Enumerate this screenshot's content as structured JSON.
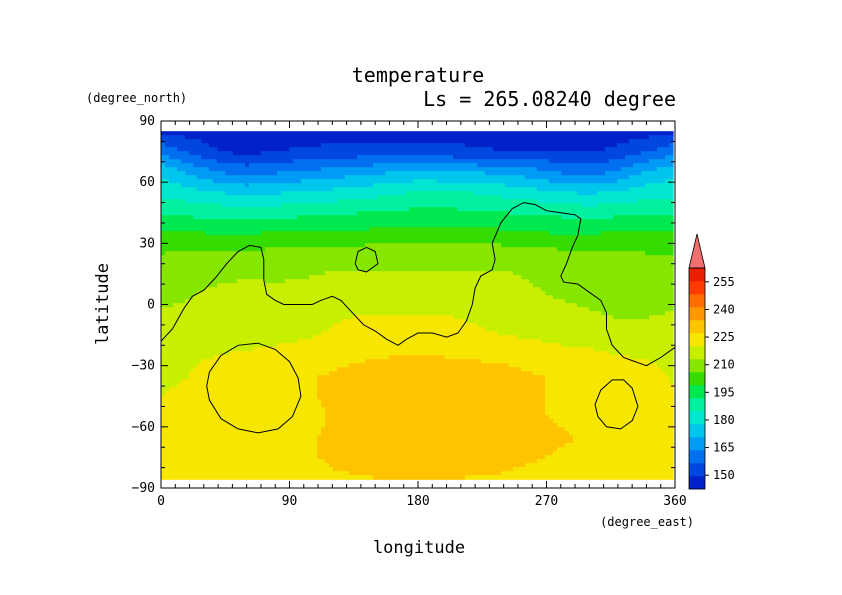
{
  "chart_data": {
    "type": "heatmap",
    "title": "temperature",
    "subtitle": "Ls = 265.08240 degree",
    "xlabel": "longitude",
    "ylabel": "latitude",
    "x_unit": "(degree_east)",
    "y_unit": "(degree_north)",
    "xlim": [
      0,
      360
    ],
    "ylim": [
      -90,
      90
    ],
    "x_ticks": [
      0,
      90,
      180,
      270,
      360
    ],
    "y_ticks": [
      90,
      60,
      30,
      0,
      -30,
      -60,
      -90
    ],
    "x_tick_labels": [
      "0",
      "90",
      "180",
      "270",
      "360"
    ],
    "y_tick_labels": [
      "90",
      "60",
      "30",
      "0",
      "−30",
      "−60",
      "−90"
    ],
    "grid": false,
    "colorbar": {
      "position": "right",
      "extend": "max",
      "levels": [
        142.5,
        150,
        157.5,
        165,
        172.5,
        180,
        187.5,
        195,
        202.5,
        210,
        217.5,
        225,
        232.5,
        240,
        247.5,
        255,
        262.5
      ],
      "colors": [
        "#0022c8",
        "#0047e0",
        "#0070f0",
        "#009bf4",
        "#00c6ee",
        "#00e6d0",
        "#00f0a0",
        "#00e850",
        "#34dc00",
        "#86e600",
        "#c8ee00",
        "#f6e600",
        "#ffc400",
        "#ff9800",
        "#ff6c00",
        "#ff3c00",
        "#e82000"
      ],
      "extend_color": "#f07070",
      "tick_labels": [
        "150",
        "165",
        "180",
        "195",
        "210",
        "225",
        "240",
        "255"
      ],
      "tick_values": [
        150,
        165,
        180,
        195,
        210,
        225,
        240,
        255
      ]
    },
    "grid_lat": [
      85,
      75,
      65,
      55,
      45,
      35,
      25,
      15,
      5,
      -5,
      -15,
      -25,
      -35,
      -45,
      -55,
      -65,
      -75,
      -85
    ],
    "grid_lon": [
      0,
      20,
      40,
      60,
      80,
      100,
      120,
      140,
      160,
      180,
      200,
      220,
      240,
      260,
      280,
      300,
      320,
      340,
      360
    ],
    "values": [
      [
        148,
        147,
        146,
        146,
        146,
        146,
        147,
        147,
        147,
        147,
        147,
        147,
        147,
        147,
        147,
        146,
        146,
        147,
        148
      ],
      [
        163,
        156,
        150,
        148,
        150,
        151,
        152,
        153,
        153,
        153,
        152,
        151,
        150,
        150,
        150,
        149,
        152,
        157,
        163
      ],
      [
        178,
        171,
        165,
        162,
        164,
        166,
        168,
        170,
        172,
        174,
        173,
        172,
        171,
        168,
        164,
        162,
        166,
        173,
        178
      ],
      [
        185,
        183,
        180,
        178,
        179,
        181,
        182,
        184,
        186,
        188,
        188,
        187,
        185,
        183,
        180,
        179,
        181,
        184,
        185
      ],
      [
        194,
        193,
        192,
        191,
        192,
        193,
        194,
        195,
        196,
        197,
        197,
        196,
        195,
        194,
        193,
        192,
        193,
        194,
        194
      ],
      [
        203,
        203,
        202,
        202,
        203,
        203,
        204,
        204,
        205,
        205,
        205,
        205,
        204,
        203,
        202,
        202,
        203,
        203,
        203
      ],
      [
        210,
        211,
        212,
        212,
        212,
        212,
        213,
        214,
        214,
        215,
        215,
        215,
        214,
        213,
        212,
        211,
        211,
        210,
        210
      ],
      [
        214,
        215,
        216,
        217,
        217,
        217,
        218,
        218,
        218,
        218,
        218,
        218,
        218,
        217,
        216,
        215,
        214,
        214,
        214
      ],
      [
        216,
        217,
        219,
        219,
        218,
        219,
        220,
        221,
        221,
        221,
        221,
        220,
        219,
        218,
        217,
        216,
        216,
        216,
        216
      ],
      [
        218,
        219,
        220,
        220,
        220,
        221,
        224,
        225,
        225,
        225,
        225,
        224,
        222,
        220,
        219,
        218,
        217,
        217,
        218
      ],
      [
        220,
        221,
        221,
        222,
        223,
        224,
        226,
        227,
        227,
        227,
        227,
        226,
        225,
        224,
        222,
        221,
        220,
        220,
        220
      ],
      [
        223,
        224,
        225,
        226,
        227,
        228,
        230,
        231,
        232,
        232,
        232,
        231,
        230,
        229,
        228,
        227,
        225,
        224,
        223
      ],
      [
        224,
        225,
        228,
        230,
        231,
        232,
        233,
        236,
        238,
        238,
        238,
        237,
        236,
        233,
        232,
        231,
        230,
        228,
        224
      ],
      [
        225,
        226,
        229,
        232,
        231,
        232,
        233,
        237,
        238,
        239,
        239,
        238,
        236,
        233,
        232,
        231,
        231,
        229,
        225
      ],
      [
        225,
        226,
        228,
        230,
        230,
        231,
        233,
        237,
        239,
        239,
        239,
        238,
        237,
        233,
        232,
        231,
        230,
        228,
        225
      ],
      [
        229,
        230,
        230,
        231,
        231,
        232,
        233,
        237,
        239,
        239,
        239,
        238,
        237,
        234,
        233,
        232,
        231,
        230,
        229
      ],
      [
        230,
        230,
        231,
        231,
        232,
        232,
        233,
        235,
        238,
        239,
        238,
        237,
        234,
        233,
        232,
        232,
        231,
        231,
        230
      ],
      [
        231,
        231,
        231,
        231,
        231,
        231,
        232,
        232,
        233,
        233,
        233,
        232,
        232,
        231,
        231,
        231,
        231,
        231,
        231
      ]
    ],
    "contour_level_line": "black",
    "contours": [
      [
        [
          0,
          -18
        ],
        [
          8,
          -12
        ],
        [
          16,
          -2
        ],
        [
          22,
          4
        ],
        [
          30,
          7
        ],
        [
          38,
          13
        ],
        [
          46,
          20
        ],
        [
          54,
          26
        ],
        [
          62,
          29
        ],
        [
          70,
          28
        ],
        [
          72,
          22
        ],
        [
          72,
          12
        ],
        [
          74,
          5
        ],
        [
          80,
          2
        ],
        [
          86,
          0
        ],
        [
          96,
          0
        ],
        [
          106,
          0
        ],
        [
          112,
          2
        ],
        [
          120,
          4
        ],
        [
          126,
          2
        ],
        [
          134,
          -4
        ],
        [
          142,
          -10
        ],
        [
          150,
          -13
        ],
        [
          158,
          -17
        ],
        [
          166,
          -20
        ],
        [
          172,
          -17
        ],
        [
          180,
          -14
        ],
        [
          190,
          -14
        ],
        [
          200,
          -16
        ],
        [
          208,
          -14
        ],
        [
          214,
          -8
        ],
        [
          218,
          0
        ],
        [
          220,
          8
        ],
        [
          224,
          14
        ],
        [
          232,
          17
        ],
        [
          234,
          22
        ],
        [
          232,
          30
        ],
        [
          238,
          40
        ],
        [
          246,
          47
        ],
        [
          254,
          50
        ],
        [
          262,
          49
        ],
        [
          270,
          46
        ],
        [
          280,
          45
        ],
        [
          290,
          44
        ],
        [
          294,
          42
        ],
        [
          292,
          34
        ],
        [
          288,
          28
        ],
        [
          284,
          20
        ],
        [
          280,
          14
        ],
        [
          282,
          11
        ],
        [
          292,
          10
        ],
        [
          300,
          6
        ],
        [
          308,
          2
        ],
        [
          312,
          -4
        ],
        [
          312,
          -12
        ],
        [
          316,
          -20
        ],
        [
          324,
          -26
        ],
        [
          332,
          -28
        ],
        [
          340,
          -30
        ],
        [
          350,
          -26
        ],
        [
          360,
          -21
        ]
      ],
      [
        [
          136,
          20
        ],
        [
          138,
          26
        ],
        [
          144,
          28
        ],
        [
          150,
          26
        ],
        [
          152,
          20
        ],
        [
          144,
          16
        ],
        [
          138,
          17
        ],
        [
          136,
          20
        ]
      ],
      [
        [
          34,
          -33
        ],
        [
          42,
          -25
        ],
        [
          54,
          -20
        ],
        [
          68,
          -19
        ],
        [
          80,
          -22
        ],
        [
          90,
          -28
        ],
        [
          96,
          -36
        ],
        [
          98,
          -45
        ],
        [
          92,
          -55
        ],
        [
          82,
          -61
        ],
        [
          68,
          -63
        ],
        [
          54,
          -61
        ],
        [
          42,
          -56
        ],
        [
          34,
          -47
        ],
        [
          32,
          -40
        ],
        [
          34,
          -33
        ]
      ],
      [
        [
          304,
          -49
        ],
        [
          308,
          -42
        ],
        [
          316,
          -37
        ],
        [
          324,
          -37
        ],
        [
          330,
          -41
        ],
        [
          334,
          -50
        ],
        [
          330,
          -57
        ],
        [
          322,
          -61
        ],
        [
          312,
          -60
        ],
        [
          306,
          -55
        ],
        [
          304,
          -49
        ]
      ]
    ]
  }
}
